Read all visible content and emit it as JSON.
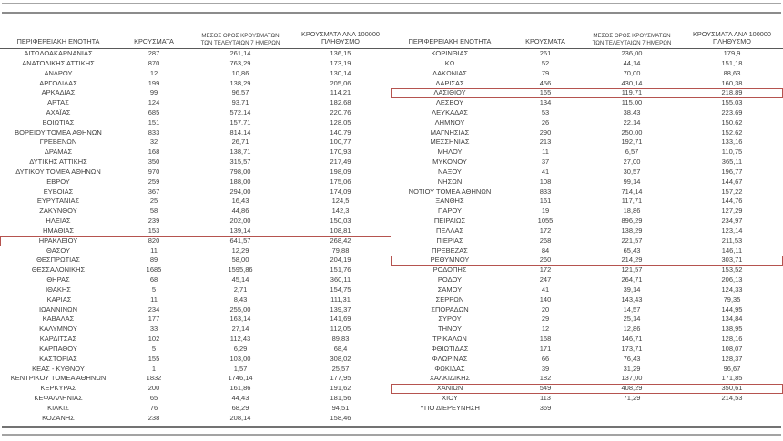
{
  "colors": {
    "highlight_box": "#b5534f",
    "text": "#404040",
    "rule": "#8c8c8c"
  },
  "table": {
    "header": {
      "region": "ΠΕΡΙΦΕΡΕΙΑΚΗ ΕΝΟΤΗΤΑ",
      "cases": "ΚΡΟΥΣΜΑΤΑ",
      "avg7_line1": "ΜΕΣΟΣ ΟΡΟΣ ΚΡΟΥΣΜΑΤΩΝ",
      "avg7_line2": "ΤΩΝ ΤΕΛΕΥΤΑΙΩΝ 7 ΗΜΕΡΩΝ",
      "per100k_line1": "ΚΡΟΥΣΜΑΤΑ ΑΝΑ 100000",
      "per100k_line2": "ΠΛΗΘΥΣΜΟ"
    },
    "left_rows": [
      {
        "region": "ΑΙΤΩΛΟΑΚΑΡΝΑΝΙΑΣ",
        "cases": "287",
        "avg7": "261,14",
        "per100k": "136,15",
        "highlighted": false
      },
      {
        "region": "ΑΝΑΤΟΛΙΚΗΣ ΑΤΤΙΚΗΣ",
        "cases": "870",
        "avg7": "763,29",
        "per100k": "173,19",
        "highlighted": false
      },
      {
        "region": "ΑΝΔΡΟΥ",
        "cases": "12",
        "avg7": "10,86",
        "per100k": "130,14",
        "highlighted": false
      },
      {
        "region": "ΑΡΓΟΛΙΔΑΣ",
        "cases": "199",
        "avg7": "138,29",
        "per100k": "205,06",
        "highlighted": false
      },
      {
        "region": "ΑΡΚΑΔΙΑΣ",
        "cases": "99",
        "avg7": "96,57",
        "per100k": "114,21",
        "highlighted": false
      },
      {
        "region": "ΑΡΤΑΣ",
        "cases": "124",
        "avg7": "93,71",
        "per100k": "182,68",
        "highlighted": false
      },
      {
        "region": "ΑΧΑΪΑΣ",
        "cases": "685",
        "avg7": "572,14",
        "per100k": "220,76",
        "highlighted": false
      },
      {
        "region": "ΒΟΙΩΤΙΑΣ",
        "cases": "151",
        "avg7": "157,71",
        "per100k": "128,05",
        "highlighted": false
      },
      {
        "region": "ΒΟΡΕΙΟΥ ΤΟΜΕΑ ΑΘΗΝΩΝ",
        "cases": "833",
        "avg7": "814,14",
        "per100k": "140,79",
        "highlighted": false
      },
      {
        "region": "ΓΡΕΒΕΝΩΝ",
        "cases": "32",
        "avg7": "26,71",
        "per100k": "100,77",
        "highlighted": false
      },
      {
        "region": "ΔΡΑΜΑΣ",
        "cases": "168",
        "avg7": "138,71",
        "per100k": "170,93",
        "highlighted": false
      },
      {
        "region": "ΔΥΤΙΚΗΣ ΑΤΤΙΚΗΣ",
        "cases": "350",
        "avg7": "315,57",
        "per100k": "217,49",
        "highlighted": false
      },
      {
        "region": "ΔΥΤΙΚΟΥ ΤΟΜΕΑ ΑΘΗΝΩΝ",
        "cases": "970",
        "avg7": "798,00",
        "per100k": "198,09",
        "highlighted": false
      },
      {
        "region": "ΕΒΡΟΥ",
        "cases": "259",
        "avg7": "188,00",
        "per100k": "175,06",
        "highlighted": false
      },
      {
        "region": "ΕΥΒΟΙΑΣ",
        "cases": "367",
        "avg7": "294,00",
        "per100k": "174,09",
        "highlighted": false
      },
      {
        "region": "ΕΥΡΥΤΑΝΙΑΣ",
        "cases": "25",
        "avg7": "16,43",
        "per100k": "124,5",
        "highlighted": false
      },
      {
        "region": "ΖΑΚΥΝΘΟΥ",
        "cases": "58",
        "avg7": "44,86",
        "per100k": "142,3",
        "highlighted": false
      },
      {
        "region": "ΗΛΕΙΑΣ",
        "cases": "239",
        "avg7": "202,00",
        "per100k": "150,03",
        "highlighted": false
      },
      {
        "region": "ΗΜΑΘΙΑΣ",
        "cases": "153",
        "avg7": "139,14",
        "per100k": "108,81",
        "highlighted": false
      },
      {
        "region": "ΗΡΑΚΛΕΙΟΥ",
        "cases": "820",
        "avg7": "641,57",
        "per100k": "268,42",
        "highlighted": true
      },
      {
        "region": "ΘΑΣΟΥ",
        "cases": "11",
        "avg7": "12,29",
        "per100k": "79,88",
        "highlighted": false
      },
      {
        "region": "ΘΕΣΠΡΩΤΙΑΣ",
        "cases": "89",
        "avg7": "58,00",
        "per100k": "204,19",
        "highlighted": false
      },
      {
        "region": "ΘΕΣΣΑΛΟΝΙΚΗΣ",
        "cases": "1685",
        "avg7": "1595,86",
        "per100k": "151,76",
        "highlighted": false
      },
      {
        "region": "ΘΗΡΑΣ",
        "cases": "68",
        "avg7": "45,14",
        "per100k": "360,11",
        "highlighted": false
      },
      {
        "region": "ΙΘΑΚΗΣ",
        "cases": "5",
        "avg7": "2,71",
        "per100k": "154,75",
        "highlighted": false
      },
      {
        "region": "ΙΚΑΡΙΑΣ",
        "cases": "11",
        "avg7": "8,43",
        "per100k": "111,31",
        "highlighted": false
      },
      {
        "region": "ΙΩΑΝΝΙΝΩΝ",
        "cases": "234",
        "avg7": "255,00",
        "per100k": "139,37",
        "highlighted": false
      },
      {
        "region": "ΚΑΒΑΛΑΣ",
        "cases": "177",
        "avg7": "163,14",
        "per100k": "141,69",
        "highlighted": false
      },
      {
        "region": "ΚΑΛΥΜΝΟΥ",
        "cases": "33",
        "avg7": "27,14",
        "per100k": "112,05",
        "highlighted": false
      },
      {
        "region": "ΚΑΡΔΙΤΣΑΣ",
        "cases": "102",
        "avg7": "112,43",
        "per100k": "89,83",
        "highlighted": false
      },
      {
        "region": "ΚΑΡΠΑΘΟΥ",
        "cases": "5",
        "avg7": "6,29",
        "per100k": "68,4",
        "highlighted": false
      },
      {
        "region": "ΚΑΣΤΟΡΙΑΣ",
        "cases": "155",
        "avg7": "103,00",
        "per100k": "308,02",
        "highlighted": false
      },
      {
        "region": "ΚΕΑΣ - ΚΥΘΝΟΥ",
        "cases": "1",
        "avg7": "1,57",
        "per100k": "25,57",
        "highlighted": false
      },
      {
        "region": "ΚΕΝΤΡΙΚΟΥ ΤΟΜΕΑ ΑΘΗΝΩΝ",
        "cases": "1832",
        "avg7": "1746,14",
        "per100k": "177,95",
        "highlighted": false
      },
      {
        "region": "ΚΕΡΚΥΡΑΣ",
        "cases": "200",
        "avg7": "161,86",
        "per100k": "191,62",
        "highlighted": false
      },
      {
        "region": "ΚΕΦΑΛΛΗΝΙΑΣ",
        "cases": "65",
        "avg7": "44,43",
        "per100k": "181,56",
        "highlighted": false
      },
      {
        "region": "ΚΙΛΚΙΣ",
        "cases": "76",
        "avg7": "68,29",
        "per100k": "94,51",
        "highlighted": false
      },
      {
        "region": "ΚΟΖΑΝΗΣ",
        "cases": "238",
        "avg7": "208,14",
        "per100k": "158,46",
        "highlighted": false
      }
    ],
    "right_rows": [
      {
        "region": "ΚΟΡΙΝΘΙΑΣ",
        "cases": "261",
        "avg7": "236,00",
        "per100k": "179,9",
        "highlighted": false
      },
      {
        "region": "ΚΩ",
        "cases": "52",
        "avg7": "44,14",
        "per100k": "151,18",
        "highlighted": false
      },
      {
        "region": "ΛΑΚΩΝΙΑΣ",
        "cases": "79",
        "avg7": "70,00",
        "per100k": "88,63",
        "highlighted": false
      },
      {
        "region": "ΛΑΡΙΣΑΣ",
        "cases": "456",
        "avg7": "430,14",
        "per100k": "160,38",
        "highlighted": false
      },
      {
        "region": "ΛΑΣΙΘΙΟΥ",
        "cases": "165",
        "avg7": "119,71",
        "per100k": "218,89",
        "highlighted": true
      },
      {
        "region": "ΛΕΣΒΟΥ",
        "cases": "134",
        "avg7": "115,00",
        "per100k": "155,03",
        "highlighted": false
      },
      {
        "region": "ΛΕΥΚΑΔΑΣ",
        "cases": "53",
        "avg7": "38,43",
        "per100k": "223,69",
        "highlighted": false
      },
      {
        "region": "ΛΗΜΝΟΥ",
        "cases": "26",
        "avg7": "22,14",
        "per100k": "150,62",
        "highlighted": false
      },
      {
        "region": "ΜΑΓΝΗΣΙΑΣ",
        "cases": "290",
        "avg7": "250,00",
        "per100k": "152,62",
        "highlighted": false
      },
      {
        "region": "ΜΕΣΣΗΝΙΑΣ",
        "cases": "213",
        "avg7": "192,71",
        "per100k": "133,16",
        "highlighted": false
      },
      {
        "region": "ΜΗΛΟΥ",
        "cases": "11",
        "avg7": "6,57",
        "per100k": "110,75",
        "highlighted": false
      },
      {
        "region": "ΜΥΚΟΝΟΥ",
        "cases": "37",
        "avg7": "27,00",
        "per100k": "365,11",
        "highlighted": false
      },
      {
        "region": "ΝΑΞΟΥ",
        "cases": "41",
        "avg7": "30,57",
        "per100k": "196,77",
        "highlighted": false
      },
      {
        "region": "ΝΗΣΩΝ",
        "cases": "108",
        "avg7": "99,14",
        "per100k": "144,67",
        "highlighted": false
      },
      {
        "region": "ΝΟΤΙΟΥ ΤΟΜΕΑ ΑΘΗΝΩΝ",
        "cases": "833",
        "avg7": "714,14",
        "per100k": "157,22",
        "highlighted": false
      },
      {
        "region": "ΞΑΝΘΗΣ",
        "cases": "161",
        "avg7": "117,71",
        "per100k": "144,76",
        "highlighted": false
      },
      {
        "region": "ΠΑΡΟΥ",
        "cases": "19",
        "avg7": "18,86",
        "per100k": "127,29",
        "highlighted": false
      },
      {
        "region": "ΠΕΙΡΑΙΩΣ",
        "cases": "1055",
        "avg7": "896,29",
        "per100k": "234,97",
        "highlighted": false
      },
      {
        "region": "ΠΕΛΛΑΣ",
        "cases": "172",
        "avg7": "138,29",
        "per100k": "123,14",
        "highlighted": false
      },
      {
        "region": "ΠΙΕΡΙΑΣ",
        "cases": "268",
        "avg7": "221,57",
        "per100k": "211,53",
        "highlighted": false
      },
      {
        "region": "ΠΡΕΒΕΖΑΣ",
        "cases": "84",
        "avg7": "65,43",
        "per100k": "146,11",
        "highlighted": false
      },
      {
        "region": "ΡΕΘΥΜΝΟΥ",
        "cases": "260",
        "avg7": "214,29",
        "per100k": "303,71",
        "highlighted": true
      },
      {
        "region": "ΡΟΔΟΠΗΣ",
        "cases": "172",
        "avg7": "121,57",
        "per100k": "153,52",
        "highlighted": false
      },
      {
        "region": "ΡΟΔΟΥ",
        "cases": "247",
        "avg7": "264,71",
        "per100k": "206,13",
        "highlighted": false
      },
      {
        "region": "ΣΑΜΟΥ",
        "cases": "41",
        "avg7": "39,14",
        "per100k": "124,33",
        "highlighted": false
      },
      {
        "region": "ΣΕΡΡΩΝ",
        "cases": "140",
        "avg7": "143,43",
        "per100k": "79,35",
        "highlighted": false
      },
      {
        "region": "ΣΠΟΡΑΔΩΝ",
        "cases": "20",
        "avg7": "14,57",
        "per100k": "144,95",
        "highlighted": false
      },
      {
        "region": "ΣΥΡΟΥ",
        "cases": "29",
        "avg7": "25,14",
        "per100k": "134,84",
        "highlighted": false
      },
      {
        "region": "ΤΗΝΟΥ",
        "cases": "12",
        "avg7": "12,86",
        "per100k": "138,95",
        "highlighted": false
      },
      {
        "region": "ΤΡΙΚΑΛΩΝ",
        "cases": "168",
        "avg7": "146,71",
        "per100k": "128,16",
        "highlighted": false
      },
      {
        "region": "ΦΘΙΩΤΙΔΑΣ",
        "cases": "171",
        "avg7": "173,71",
        "per100k": "108,07",
        "highlighted": false
      },
      {
        "region": "ΦΛΩΡΙΝΑΣ",
        "cases": "66",
        "avg7": "76,43",
        "per100k": "128,37",
        "highlighted": false
      },
      {
        "region": "ΦΩΚΙΔΑΣ",
        "cases": "39",
        "avg7": "31,29",
        "per100k": "96,67",
        "highlighted": false
      },
      {
        "region": "ΧΑΛΚΙΔΙΚΗΣ",
        "cases": "182",
        "avg7": "137,00",
        "per100k": "171,85",
        "highlighted": false
      },
      {
        "region": "ΧΑΝΙΩΝ",
        "cases": "549",
        "avg7": "408,29",
        "per100k": "350,61",
        "highlighted": true
      },
      {
        "region": "ΧΙΟΥ",
        "cases": "113",
        "avg7": "71,29",
        "per100k": "214,53",
        "highlighted": false
      },
      {
        "region": "ΥΠΟ ΔΙΕΡΕΥΝΗΣΗ",
        "cases": "369",
        "avg7": "",
        "per100k": "",
        "highlighted": false
      }
    ]
  }
}
